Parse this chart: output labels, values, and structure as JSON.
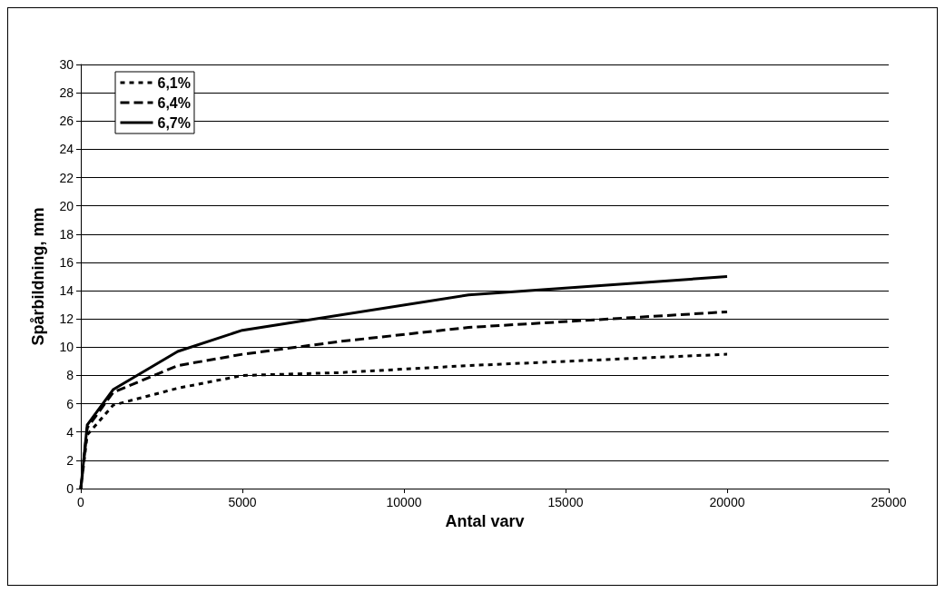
{
  "chart_data": {
    "type": "line",
    "xlabel": "Antal varv",
    "ylabel": "Spårbildning, mm",
    "xlim": [
      0,
      25000
    ],
    "xticks": [
      0,
      5000,
      10000,
      15000,
      20000,
      25000
    ],
    "ylim": [
      0,
      30
    ],
    "yticks": [
      0,
      2,
      4,
      6,
      8,
      10,
      12,
      14,
      16,
      18,
      20,
      22,
      24,
      26,
      28,
      30
    ],
    "grid": "y",
    "legend": "top left",
    "marker": "none",
    "series": [
      {
        "name": "6,1%",
        "color": "#000000",
        "line_style": "dotted",
        "x": [
          0,
          200,
          1000,
          3000,
          5000,
          8000,
          12000,
          20000
        ],
        "values": [
          0,
          3.8,
          5.9,
          7.1,
          8.0,
          8.2,
          8.7,
          9.5
        ]
      },
      {
        "name": "6,4%",
        "color": "#000000",
        "line_style": "dashed",
        "x": [
          0,
          200,
          1000,
          3000,
          5000,
          8000,
          12000,
          20000
        ],
        "values": [
          0,
          4.3,
          6.8,
          8.7,
          9.5,
          10.4,
          11.4,
          12.5
        ]
      },
      {
        "name": "6,7%",
        "color": "#000000",
        "line_style": "solid",
        "x": [
          0,
          200,
          1000,
          3000,
          5000,
          12000,
          20000
        ],
        "values": [
          0,
          4.5,
          7.0,
          9.7,
          11.2,
          13.7,
          15.0
        ]
      }
    ]
  }
}
